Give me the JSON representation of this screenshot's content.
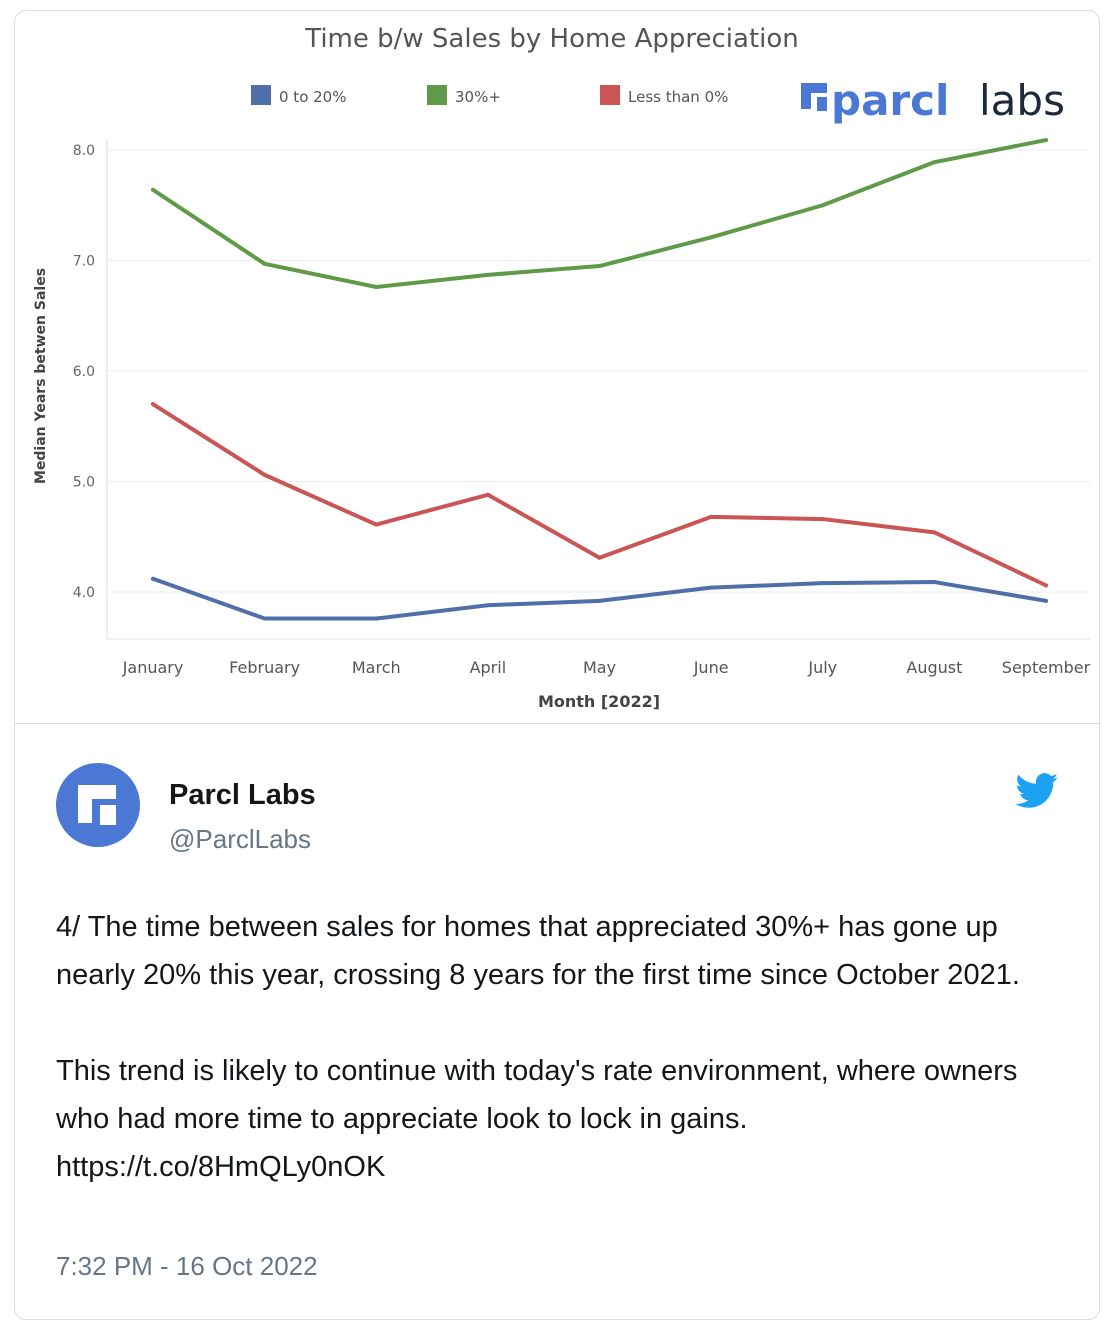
{
  "tweet": {
    "display_name": "Parcl Labs",
    "handle": "@ParclLabs",
    "text_p1": "4/ The time between sales for homes that appreciated 30%+ has gone up nearly 20% this year, crossing 8 years for the first time since October 2021.",
    "text_p2": "This trend is likely to continue with today's rate environment, where owners who had more time to appreciate look to lock in gains.",
    "link": "https://t.co/8HmQLy0nOK",
    "timestamp": "7:32 PM - 16 Oct 2022",
    "bird_icon": "twitter-bird-icon",
    "avatar_icon": "parcl-logo-icon"
  },
  "branding": {
    "logo_word": "parcl",
    "logo_word2": "labs",
    "logo_color": "#4a78d4"
  },
  "chart_data": {
    "type": "line",
    "title": "Time b/w Sales by Home Appreciation",
    "xlabel": "Month [2022]",
    "ylabel": "Median Years betwen Sales",
    "categories": [
      "January",
      "February",
      "March",
      "April",
      "May",
      "June",
      "July",
      "August",
      "September"
    ],
    "yticks": [
      4.0,
      5.0,
      6.0,
      7.0,
      8.0
    ],
    "ytick_labels": [
      "4.0",
      "5.0",
      "6.0",
      "7.0",
      "8.0"
    ],
    "ylim": [
      3.5,
      8.2
    ],
    "grid": true,
    "legend_position": "top",
    "series": [
      {
        "name": "0 to 20%",
        "color": "#4e6fa8",
        "values": [
          4.12,
          3.76,
          3.76,
          3.88,
          3.92,
          4.04,
          4.08,
          4.09,
          3.92
        ]
      },
      {
        "name": "30%+",
        "color": "#5e9a48",
        "values": [
          7.64,
          6.97,
          6.76,
          6.87,
          6.95,
          7.21,
          7.5,
          7.89,
          8.09
        ]
      },
      {
        "name": "Less than 0%",
        "color": "#c95654",
        "values": [
          5.7,
          5.06,
          4.61,
          4.88,
          4.31,
          4.68,
          4.66,
          4.54,
          4.06
        ]
      }
    ]
  }
}
